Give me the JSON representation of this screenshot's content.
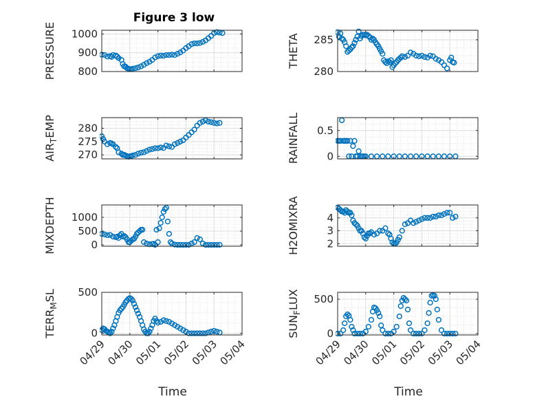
{
  "figure": {
    "title": "Figure 3 low",
    "xlabel": "Time"
  },
  "chart_data": [
    {
      "id": "pressure",
      "type": "scatter",
      "ylabel": "PRESSURE",
      "ylim": [
        800,
        1020
      ],
      "yticks": [
        800,
        900,
        1000
      ],
      "ytick_labels": [
        "800",
        "900",
        "1000"
      ],
      "xlim": [
        "04/29",
        "05/04"
      ],
      "xticks": [
        "04/29",
        "04/30",
        "05/01",
        "05/02",
        "05/03",
        "05/04"
      ],
      "grid": true,
      "minor_grid": true,
      "show_xtick_labels": false,
      "x": [
        0.0,
        0.1,
        0.2,
        0.3,
        0.35,
        0.4,
        0.5,
        0.55,
        0.6,
        0.7,
        0.75,
        0.8,
        0.85,
        0.9,
        0.95,
        1.0,
        1.05,
        1.1,
        1.2,
        1.3,
        1.4,
        1.5,
        1.6,
        1.7,
        1.8,
        1.9,
        2.0,
        2.1,
        2.2,
        2.3,
        2.4,
        2.5,
        2.6,
        2.7,
        2.8,
        2.9,
        3.0,
        3.1,
        3.2,
        3.3,
        3.4,
        3.5,
        3.6,
        3.7,
        3.8,
        3.9,
        4.0,
        4.1,
        4.2,
        4.3
      ],
      "y": [
        890,
        888,
        880,
        882,
        878,
        888,
        885,
        880,
        872,
        862,
        840,
        828,
        826,
        818,
        815,
        812,
        813,
        815,
        818,
        822,
        828,
        836,
        845,
        852,
        862,
        875,
        882,
        885,
        884,
        888,
        888,
        890,
        888,
        895,
        902,
        912,
        925,
        935,
        946,
        950,
        950,
        952,
        958,
        966,
        978,
        990,
        1005,
        1010,
        1008,
        1005
      ]
    },
    {
      "id": "theta",
      "type": "scatter",
      "ylabel": "THETA",
      "ylim": [
        280,
        286.5
      ],
      "yticks": [
        280,
        285
      ],
      "ytick_labels": [
        "280",
        "285"
      ],
      "xlim": [
        "04/29",
        "05/04"
      ],
      "xticks": [
        "04/29",
        "04/30",
        "05/01",
        "05/02",
        "05/03",
        "05/04"
      ],
      "grid": true,
      "minor_grid": true,
      "show_xtick_labels": false,
      "x": [
        0.0,
        0.05,
        0.1,
        0.15,
        0.2,
        0.25,
        0.3,
        0.35,
        0.4,
        0.45,
        0.5,
        0.55,
        0.6,
        0.65,
        0.7,
        0.75,
        0.8,
        0.85,
        0.9,
        0.95,
        1.0,
        1.05,
        1.1,
        1.15,
        1.2,
        1.25,
        1.3,
        1.35,
        1.4,
        1.45,
        1.5,
        1.55,
        1.6,
        1.65,
        1.7,
        1.75,
        1.8,
        1.85,
        1.9,
        1.95,
        2.0,
        2.05,
        2.1,
        2.15,
        2.2,
        2.25,
        2.3,
        2.4,
        2.5,
        2.6,
        2.7,
        2.8,
        2.9,
        3.0,
        3.1,
        3.2,
        3.3,
        3.4,
        3.5,
        3.6,
        3.7,
        3.8,
        3.9,
        4.0,
        4.05,
        4.1,
        4.15
      ],
      "y": [
        286.2,
        285.5,
        286.0,
        285.2,
        285.0,
        284.6,
        284.0,
        283.1,
        283.3,
        283.5,
        283.8,
        284.0,
        284.5,
        285.0,
        285.5,
        286.3,
        285.2,
        285.6,
        285.8,
        285.8,
        285.7,
        285.8,
        285.6,
        285.4,
        285.0,
        285.2,
        285.0,
        284.6,
        284.3,
        284.0,
        283.6,
        283.2,
        282.8,
        281.8,
        281.5,
        281.3,
        281.6,
        281.5,
        281.8,
        280.7,
        281.0,
        281.3,
        281.5,
        281.8,
        282.0,
        282.2,
        282.4,
        282.3,
        282.5,
        283.0,
        282.8,
        282.5,
        282.4,
        282.5,
        282.3,
        282.2,
        282.5,
        282.4,
        282.0,
        281.8,
        281.5,
        281.0,
        280.5,
        281.8,
        282.2,
        281.5,
        281.4
      ]
    },
    {
      "id": "air_temp",
      "type": "scatter",
      "ylabel": "AIR_TEMP",
      "ylim": [
        268.5,
        284
      ],
      "yticks": [
        270,
        275,
        280
      ],
      "ytick_labels": [
        "270",
        "275",
        "280"
      ],
      "xlim": [
        "04/29",
        "05/04"
      ],
      "xticks": [
        "04/29",
        "04/30",
        "05/01",
        "05/02",
        "05/03",
        "05/04"
      ],
      "grid": true,
      "minor_grid": true,
      "show_xtick_labels": false,
      "x": [
        0.0,
        0.05,
        0.1,
        0.2,
        0.3,
        0.35,
        0.4,
        0.5,
        0.55,
        0.6,
        0.7,
        0.75,
        0.8,
        0.85,
        0.9,
        0.95,
        1.0,
        1.05,
        1.1,
        1.2,
        1.3,
        1.4,
        1.5,
        1.6,
        1.7,
        1.8,
        1.9,
        2.0,
        2.1,
        2.2,
        2.3,
        2.4,
        2.5,
        2.6,
        2.7,
        2.8,
        2.9,
        3.0,
        3.1,
        3.2,
        3.3,
        3.4,
        3.5,
        3.6,
        3.7,
        3.8,
        3.9,
        4.0,
        4.1,
        4.2
      ],
      "y": [
        277.0,
        276.0,
        275.0,
        274.0,
        274.5,
        274.3,
        274.0,
        273.0,
        272.5,
        271.0,
        270.5,
        270.0,
        270.0,
        269.8,
        269.5,
        269.3,
        269.5,
        269.5,
        269.8,
        270.0,
        270.5,
        270.8,
        271.0,
        271.5,
        272.0,
        272.2,
        272.5,
        272.5,
        272.8,
        272.6,
        273.5,
        273.2,
        273.0,
        274.0,
        274.5,
        275.0,
        275.5,
        276.5,
        277.5,
        278.5,
        279.5,
        281.0,
        282.0,
        282.5,
        283.0,
        282.5,
        282.3,
        282.0,
        281.8,
        282.0
      ]
    },
    {
      "id": "rainfall",
      "type": "scatter",
      "ylabel": "RAINFALL",
      "ylim": [
        -0.05,
        0.75
      ],
      "yticks": [
        0,
        0.5
      ],
      "ytick_labels": [
        "0",
        "0.5"
      ],
      "xlim": [
        "04/29",
        "05/04"
      ],
      "xticks": [
        "04/29",
        "04/30",
        "05/01",
        "05/02",
        "05/03",
        "05/04"
      ],
      "grid": true,
      "minor_grid": true,
      "show_xtick_labels": false,
      "x": [
        0.0,
        0.05,
        0.1,
        0.15,
        0.2,
        0.25,
        0.3,
        0.35,
        0.4,
        0.45,
        0.5,
        0.55,
        0.6,
        0.65,
        0.7,
        0.75,
        0.8,
        0.85,
        0.9,
        0.95,
        1.0,
        1.2,
        1.4,
        1.6,
        1.8,
        2.0,
        2.2,
        2.4,
        2.6,
        2.8,
        3.0,
        3.2,
        3.4,
        3.6,
        3.8,
        4.0,
        4.2
      ],
      "y": [
        0.3,
        0.3,
        0.3,
        0.7,
        0.3,
        0.3,
        0.3,
        0.3,
        0.0,
        0.3,
        0.0,
        0.2,
        0.3,
        0.0,
        0.0,
        0.1,
        0.0,
        0.0,
        0.0,
        0.0,
        0.0,
        0.0,
        0.0,
        0.0,
        0.0,
        0.0,
        0.0,
        0.0,
        0.0,
        0.0,
        0.0,
        0.0,
        0.0,
        0.0,
        0.0,
        0.0,
        0.0
      ]
    },
    {
      "id": "mixdepth",
      "type": "scatter",
      "ylabel": "MIXDEPTH",
      "ylim": [
        -50,
        1450
      ],
      "yticks": [
        0,
        500,
        1000
      ],
      "ytick_labels": [
        "0",
        "500",
        "1000"
      ],
      "xlim": [
        "04/29",
        "05/04"
      ],
      "xticks": [
        "04/29",
        "04/30",
        "05/01",
        "05/02",
        "05/03",
        "05/04"
      ],
      "grid": true,
      "minor_grid": true,
      "show_xtick_labels": false,
      "x": [
        0.0,
        0.1,
        0.2,
        0.3,
        0.4,
        0.5,
        0.55,
        0.6,
        0.65,
        0.7,
        0.75,
        0.8,
        0.85,
        0.9,
        0.95,
        1.0,
        1.05,
        1.1,
        1.15,
        1.2,
        1.25,
        1.3,
        1.35,
        1.4,
        1.45,
        1.5,
        1.6,
        1.7,
        1.8,
        1.85,
        1.9,
        1.95,
        2.0,
        2.05,
        2.1,
        2.15,
        2.2,
        2.25,
        2.3,
        2.35,
        2.4,
        2.45,
        2.5,
        2.6,
        2.7,
        2.8,
        2.9,
        3.0,
        3.1,
        3.2,
        3.3,
        3.4,
        3.5,
        3.6,
        3.7,
        3.8,
        3.9,
        4.0,
        4.1,
        4.2
      ],
      "y": [
        400,
        380,
        350,
        360,
        300,
        280,
        300,
        250,
        350,
        400,
        300,
        320,
        280,
        200,
        100,
        100,
        150,
        200,
        220,
        300,
        400,
        450,
        500,
        550,
        550,
        100,
        50,
        20,
        30,
        40,
        0,
        550,
        100,
        600,
        800,
        1000,
        1200,
        1300,
        1350,
        850,
        400,
        100,
        50,
        10,
        0,
        0,
        0,
        0,
        0,
        50,
        100,
        250,
        200,
        50,
        0,
        0,
        0,
        0,
        0,
        0
      ]
    },
    {
      "id": "h2omixra",
      "type": "scatter",
      "ylabel": "H2OMIXRA",
      "ylim": [
        1.8,
        5.0
      ],
      "yticks": [
        2,
        3,
        4
      ],
      "ytick_labels": [
        "2",
        "3",
        "4"
      ],
      "xlim": [
        "04/29",
        "05/04"
      ],
      "xticks": [
        "04/29",
        "04/30",
        "05/01",
        "05/02",
        "05/03",
        "05/04"
      ],
      "grid": true,
      "minor_grid": true,
      "show_xtick_labels": false,
      "x": [
        0.0,
        0.05,
        0.1,
        0.15,
        0.2,
        0.25,
        0.3,
        0.35,
        0.4,
        0.45,
        0.5,
        0.55,
        0.6,
        0.65,
        0.7,
        0.75,
        0.8,
        0.85,
        0.9,
        0.95,
        1.0,
        1.05,
        1.1,
        1.15,
        1.2,
        1.3,
        1.4,
        1.5,
        1.6,
        1.7,
        1.8,
        1.85,
        1.9,
        1.95,
        2.0,
        2.05,
        2.1,
        2.15,
        2.2,
        2.3,
        2.4,
        2.5,
        2.6,
        2.7,
        2.8,
        2.9,
        3.0,
        3.1,
        3.2,
        3.3,
        3.4,
        3.5,
        3.6,
        3.7,
        3.8,
        3.9,
        4.0,
        4.1,
        4.2
      ],
      "y": [
        4.8,
        4.7,
        4.6,
        4.5,
        4.5,
        4.4,
        4.6,
        4.5,
        4.4,
        4.4,
        4.2,
        3.8,
        3.6,
        3.5,
        3.4,
        3.2,
        3.0,
        3.0,
        2.8,
        2.5,
        2.4,
        2.6,
        2.8,
        2.8,
        2.9,
        2.7,
        2.8,
        3.0,
        3.0,
        3.2,
        2.8,
        2.7,
        2.4,
        2.1,
        2.0,
        2.0,
        2.1,
        2.3,
        2.5,
        3.0,
        3.5,
        3.6,
        3.8,
        3.6,
        3.7,
        3.8,
        3.9,
        4.0,
        4.0,
        4.0,
        4.1,
        4.1,
        4.2,
        4.2,
        4.3,
        4.4,
        4.4,
        4.0,
        4.1
      ]
    },
    {
      "id": "terr_msl",
      "type": "scatter",
      "ylabel": "TERR_MSL",
      "ylim": [
        -20,
        500
      ],
      "yticks": [
        0,
        500
      ],
      "ytick_labels": [
        "0",
        "500"
      ],
      "xlim": [
        "04/29",
        "05/04"
      ],
      "xticks": [
        "04/29",
        "04/30",
        "05/01",
        "05/02",
        "05/03",
        "05/04"
      ],
      "grid": true,
      "minor_grid": true,
      "show_xtick_labels": true,
      "x": [
        0.0,
        0.05,
        0.1,
        0.15,
        0.2,
        0.25,
        0.3,
        0.35,
        0.4,
        0.45,
        0.5,
        0.55,
        0.6,
        0.65,
        0.7,
        0.75,
        0.8,
        0.85,
        0.9,
        0.95,
        1.0,
        1.05,
        1.1,
        1.15,
        1.2,
        1.25,
        1.3,
        1.35,
        1.4,
        1.45,
        1.5,
        1.55,
        1.6,
        1.65,
        1.7,
        1.75,
        1.8,
        1.85,
        1.9,
        1.95,
        2.0,
        2.1,
        2.2,
        2.3,
        2.4,
        2.5,
        2.6,
        2.7,
        2.8,
        2.9,
        3.0,
        3.1,
        3.2,
        3.3,
        3.4,
        3.5,
        3.6,
        3.7,
        3.8,
        3.9,
        4.0,
        4.1,
        4.2
      ],
      "y": [
        40,
        60,
        50,
        30,
        20,
        10,
        0,
        20,
        60,
        100,
        150,
        200,
        250,
        280,
        300,
        320,
        350,
        380,
        400,
        420,
        430,
        420,
        400,
        360,
        320,
        280,
        240,
        200,
        150,
        100,
        50,
        20,
        0,
        0,
        20,
        60,
        100,
        150,
        180,
        150,
        130,
        140,
        160,
        150,
        140,
        120,
        100,
        80,
        60,
        40,
        20,
        0,
        0,
        0,
        0,
        0,
        0,
        0,
        10,
        20,
        30,
        20,
        10
      ]
    },
    {
      "id": "sun_flux",
      "type": "scatter",
      "ylabel": "SUN_FLUX",
      "ylim": [
        -20,
        600
      ],
      "yticks": [
        0,
        500
      ],
      "ytick_labels": [
        "0",
        "500"
      ],
      "xlim": [
        "04/29",
        "05/04"
      ],
      "xticks": [
        "04/29",
        "04/30",
        "05/01",
        "05/02",
        "05/03",
        "05/04"
      ],
      "grid": true,
      "minor_grid": true,
      "show_xtick_labels": true,
      "x": [
        0.0,
        0.1,
        0.2,
        0.25,
        0.3,
        0.35,
        0.4,
        0.45,
        0.5,
        0.55,
        0.6,
        0.7,
        0.8,
        0.9,
        1.0,
        1.1,
        1.2,
        1.25,
        1.3,
        1.35,
        1.4,
        1.45,
        1.5,
        1.55,
        1.6,
        1.7,
        1.8,
        1.9,
        2.0,
        2.1,
        2.2,
        2.25,
        2.3,
        2.35,
        2.4,
        2.45,
        2.5,
        2.55,
        2.6,
        2.7,
        2.8,
        2.9,
        3.0,
        3.1,
        3.2,
        3.25,
        3.3,
        3.35,
        3.4,
        3.45,
        3.5,
        3.55,
        3.6,
        3.7,
        3.8,
        3.9,
        4.0,
        4.1,
        4.2
      ],
      "y": [
        0,
        0,
        50,
        150,
        250,
        280,
        260,
        200,
        100,
        50,
        0,
        0,
        0,
        0,
        30,
        100,
        200,
        320,
        380,
        370,
        340,
        300,
        250,
        120,
        50,
        0,
        0,
        0,
        30,
        100,
        250,
        400,
        480,
        520,
        500,
        480,
        350,
        150,
        50,
        0,
        0,
        0,
        0,
        50,
        150,
        300,
        450,
        550,
        560,
        550,
        500,
        350,
        200,
        50,
        0,
        0,
        0,
        0,
        0
      ]
    }
  ]
}
